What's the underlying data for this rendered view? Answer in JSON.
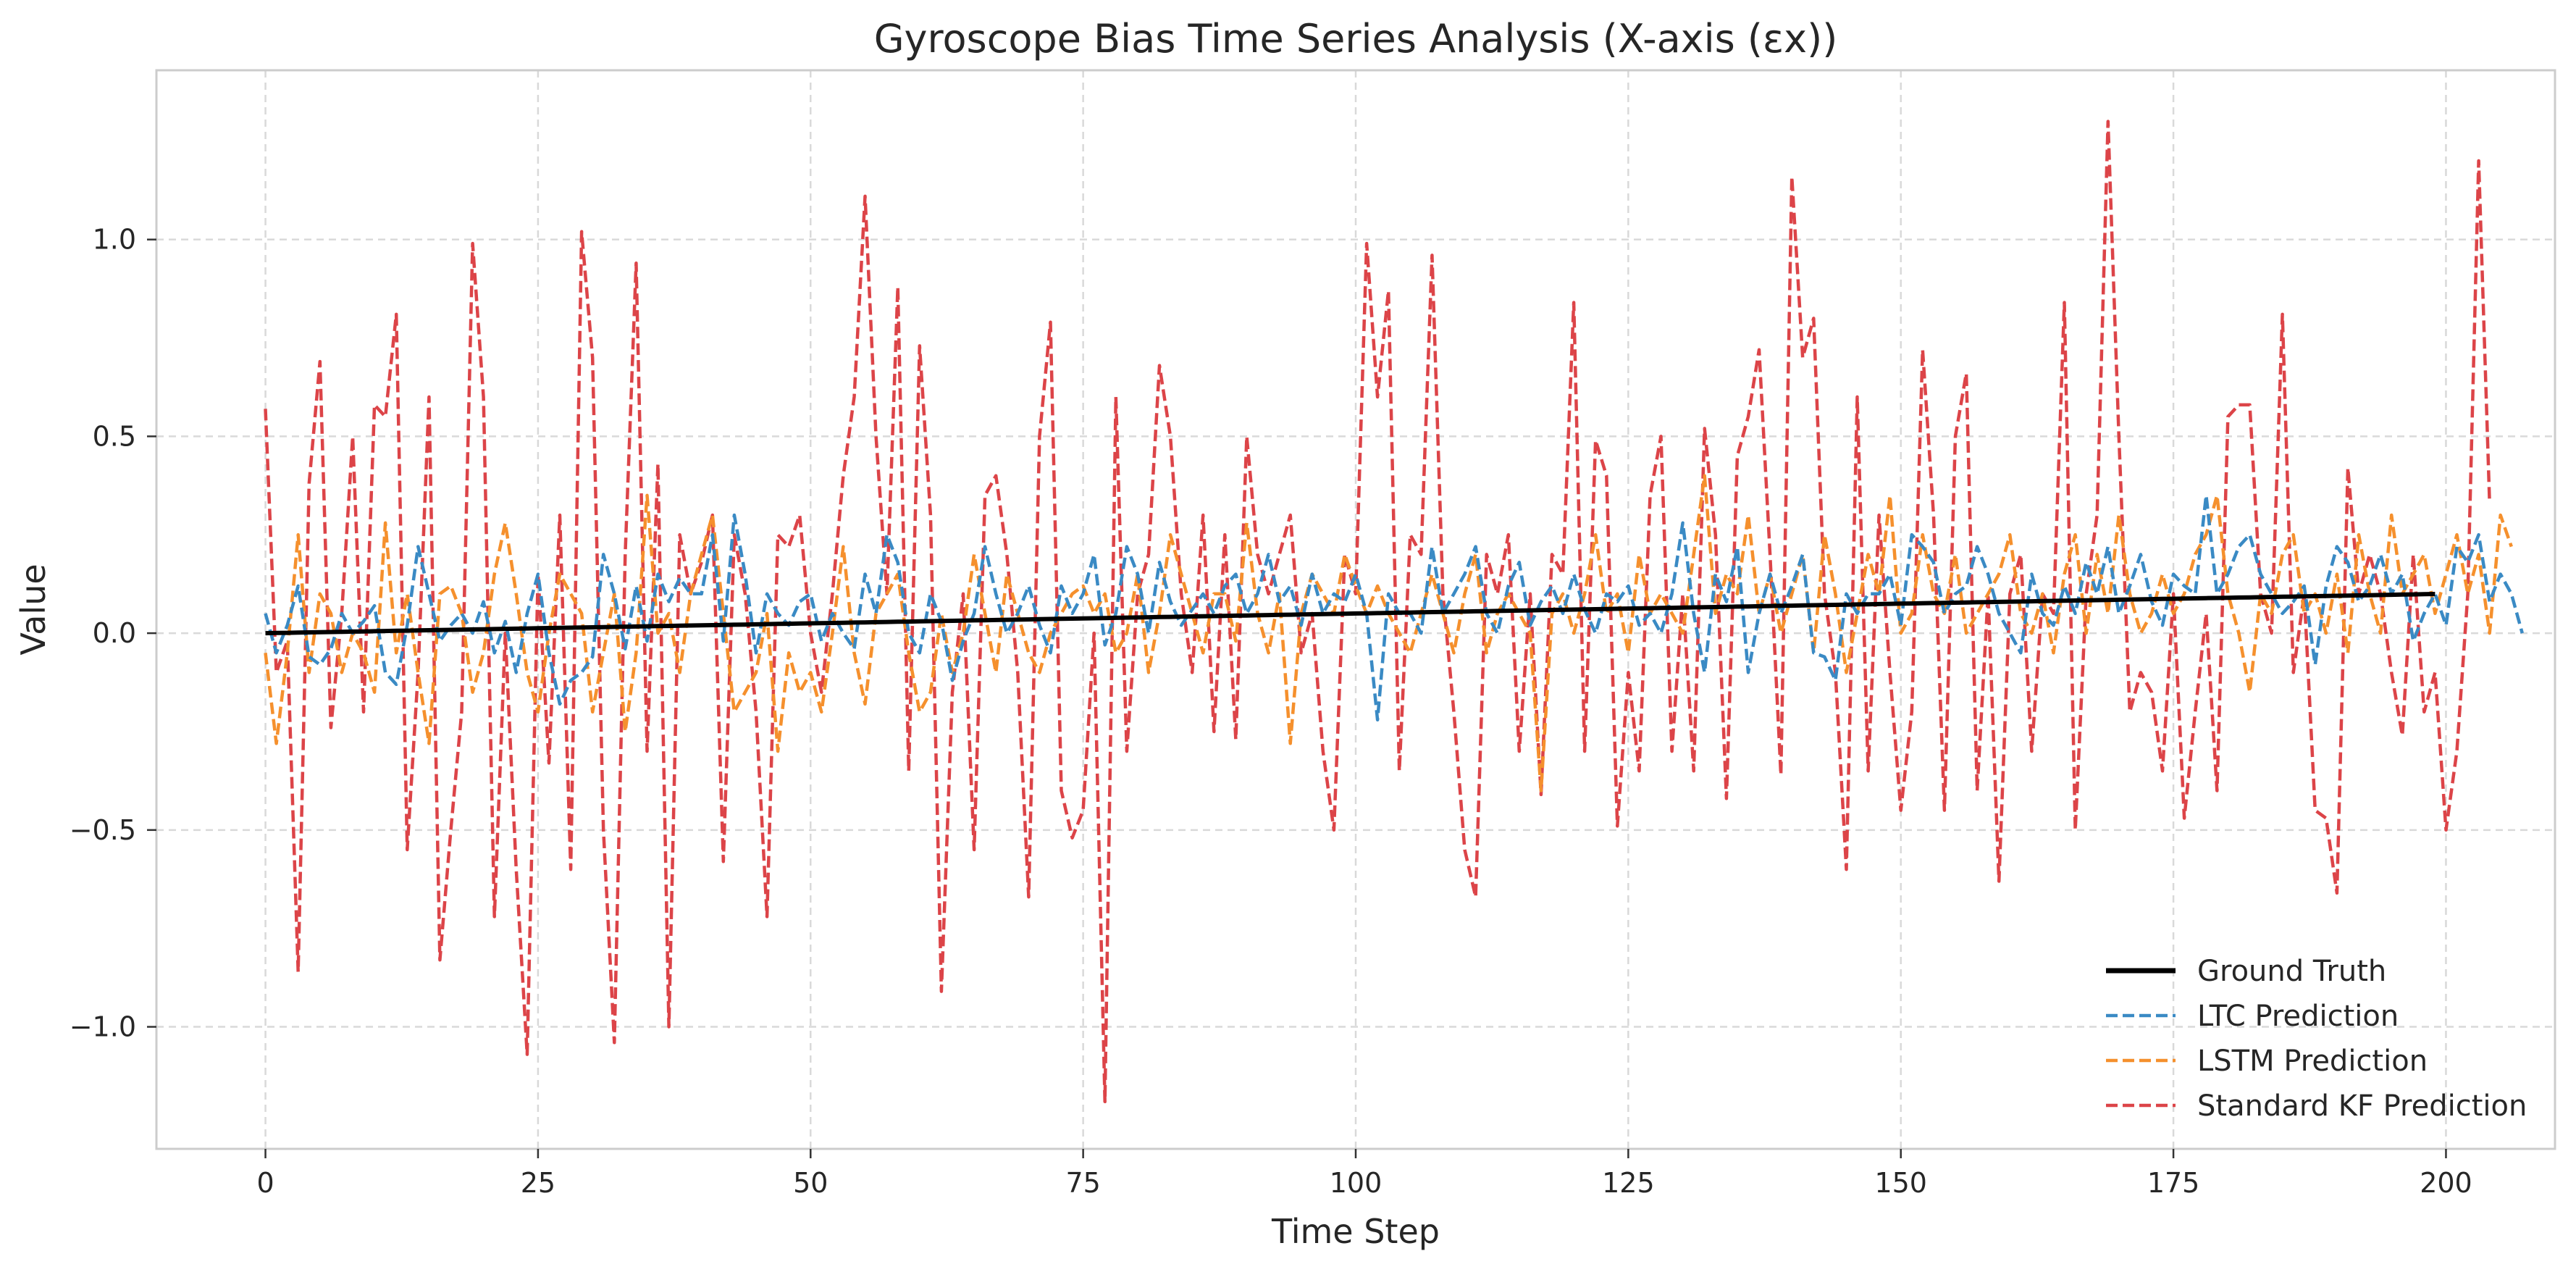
{
  "chart_data": {
    "type": "line",
    "title": "Gyroscope Bias Time Series Analysis (X-axis (εx))",
    "xlabel": "Time Step",
    "ylabel": "Value",
    "xlim": [
      -10,
      210
    ],
    "ylim": [
      -1.31,
      1.43
    ],
    "xticks": [
      0,
      25,
      50,
      75,
      100,
      125,
      150,
      175,
      200
    ],
    "yticks": [
      -1.0,
      -0.5,
      0.0,
      0.5,
      1.0
    ],
    "ytick_labels": [
      "−1.0",
      "−0.5",
      "0.0",
      "0.5",
      "1.0"
    ],
    "grid": true,
    "legend_position": "lower-right",
    "x": {
      "start": 0,
      "end": 199,
      "step": 1
    },
    "series": [
      {
        "name": "Ground Truth",
        "color": "#000000",
        "style": "solid",
        "values": [
          0.0,
          0.0005,
          0.001,
          0.0015,
          0.002,
          0.0025,
          0.003,
          0.0035,
          0.004,
          0.0045,
          0.005,
          0.0055,
          0.006,
          0.0065,
          0.007,
          0.0075,
          0.008,
          0.0085,
          0.009,
          0.0095,
          0.01,
          0.0105,
          0.011,
          0.0115,
          0.012,
          0.0125,
          0.013,
          0.0135,
          0.014,
          0.0145,
          0.015,
          0.0155,
          0.016,
          0.0165,
          0.017,
          0.0175,
          0.018,
          0.0185,
          0.019,
          0.0195,
          0.02,
          0.0205,
          0.021,
          0.0215,
          0.022,
          0.0225,
          0.023,
          0.0235,
          0.024,
          0.0245,
          0.025,
          0.0255,
          0.026,
          0.0265,
          0.027,
          0.0275,
          0.028,
          0.0285,
          0.029,
          0.0295,
          0.03,
          0.0305,
          0.031,
          0.0315,
          0.032,
          0.0325,
          0.033,
          0.0335,
          0.034,
          0.0345,
          0.035,
          0.0355,
          0.036,
          0.0365,
          0.037,
          0.0375,
          0.038,
          0.0385,
          0.039,
          0.0395,
          0.04,
          0.0405,
          0.041,
          0.0415,
          0.042,
          0.0425,
          0.043,
          0.0435,
          0.044,
          0.0445,
          0.045,
          0.0455,
          0.046,
          0.0465,
          0.047,
          0.0475,
          0.048,
          0.0485,
          0.049,
          0.0495,
          0.05,
          0.0505,
          0.051,
          0.0515,
          0.052,
          0.0525,
          0.053,
          0.0535,
          0.054,
          0.0545,
          0.055,
          0.0555,
          0.056,
          0.0565,
          0.057,
          0.0575,
          0.058,
          0.0585,
          0.059,
          0.0595,
          0.06,
          0.0605,
          0.061,
          0.0615,
          0.062,
          0.0625,
          0.063,
          0.0635,
          0.064,
          0.0645,
          0.065,
          0.0655,
          0.066,
          0.0665,
          0.067,
          0.0675,
          0.068,
          0.0685,
          0.069,
          0.0695,
          0.07,
          0.0705,
          0.071,
          0.0715,
          0.072,
          0.0725,
          0.073,
          0.0735,
          0.074,
          0.0745,
          0.075,
          0.0755,
          0.076,
          0.0765,
          0.077,
          0.0775,
          0.078,
          0.0785,
          0.079,
          0.0795,
          0.08,
          0.0805,
          0.081,
          0.0815,
          0.082,
          0.0825,
          0.083,
          0.0835,
          0.084,
          0.0845,
          0.085,
          0.0855,
          0.086,
          0.0865,
          0.087,
          0.0875,
          0.088,
          0.0885,
          0.089,
          0.0895,
          0.09,
          0.0905,
          0.091,
          0.0915,
          0.092,
          0.0925,
          0.093,
          0.0935,
          0.094,
          0.0945,
          0.095,
          0.0955,
          0.096,
          0.0965,
          0.097,
          0.0975,
          0.098,
          0.0985,
          0.099,
          0.0995
        ]
      },
      {
        "name": "LTC Prediction",
        "color": "#3a8ac4",
        "style": "dashed",
        "values": [
          0.05,
          -0.05,
          0.02,
          0.12,
          -0.06,
          -0.08,
          -0.04,
          0.05,
          0.0,
          0.03,
          0.07,
          -0.1,
          -0.13,
          0.02,
          0.22,
          0.1,
          -0.02,
          0.02,
          0.05,
          0.0,
          0.08,
          -0.05,
          0.03,
          -0.1,
          0.05,
          0.15,
          -0.05,
          -0.18,
          -0.12,
          -0.1,
          -0.06,
          0.2,
          0.1,
          -0.04,
          0.12,
          -0.02,
          0.15,
          0.08,
          0.14,
          0.1,
          0.1,
          0.25,
          -0.02,
          0.3,
          0.15,
          -0.05,
          0.1,
          0.05,
          0.02,
          0.08,
          0.1,
          -0.02,
          0.05,
          0.0,
          -0.04,
          0.15,
          0.05,
          0.25,
          0.18,
          0.0,
          -0.05,
          0.1,
          0.03,
          -0.12,
          -0.02,
          0.05,
          0.22,
          0.1,
          0.0,
          0.05,
          0.12,
          0.02,
          -0.05,
          0.12,
          0.05,
          0.1,
          0.2,
          -0.03,
          0.05,
          0.22,
          0.15,
          0.0,
          0.18,
          0.08,
          0.02,
          0.06,
          0.1,
          0.05,
          0.12,
          0.15,
          0.05,
          0.1,
          0.2,
          0.08,
          0.12,
          0.02,
          0.15,
          0.05,
          0.1,
          0.08,
          0.15,
          0.05,
          -0.22,
          0.1,
          0.05,
          0.05,
          0.0,
          0.22,
          0.05,
          0.1,
          0.15,
          0.22,
          0.05,
          0.0,
          0.12,
          0.18,
          0.02,
          0.08,
          0.12,
          0.05,
          0.15,
          0.06,
          0.0,
          0.1,
          0.08,
          0.12,
          0.02,
          0.05,
          0.0,
          0.1,
          0.28,
          0.05,
          -0.1,
          0.15,
          0.08,
          0.22,
          -0.1,
          0.05,
          0.15,
          0.05,
          0.12,
          0.2,
          -0.05,
          -0.06,
          -0.12,
          0.1,
          0.05,
          0.1,
          0.1,
          0.15,
          0.02,
          0.25,
          0.22,
          0.18,
          0.05,
          0.1,
          0.12,
          0.22,
          0.15,
          0.05,
          0.0,
          -0.05,
          0.15,
          0.05,
          0.02,
          0.12,
          0.05,
          0.18,
          0.1,
          0.22,
          0.05,
          0.12,
          0.2,
          0.08,
          0.02,
          0.15,
          0.12,
          0.1,
          0.35,
          0.1,
          0.15,
          0.22,
          0.25,
          0.15,
          0.1,
          0.05,
          0.08,
          0.12,
          -0.08,
          0.12,
          0.22,
          0.18,
          0.08,
          0.12,
          0.2,
          0.1,
          0.15,
          -0.02,
          0.05,
          0.1,
          0.02,
          0.22,
          0.18,
          0.25,
          0.08,
          0.15,
          0.1,
          0.0
        ]
      },
      {
        "name": "LSTM Prediction",
        "color": "#f5902d",
        "style": "dashed",
        "values": [
          -0.05,
          -0.28,
          -0.05,
          0.25,
          -0.1,
          0.1,
          0.05,
          -0.1,
          0.0,
          -0.05,
          -0.15,
          0.28,
          -0.05,
          0.1,
          -0.1,
          -0.28,
          0.1,
          0.12,
          0.05,
          -0.15,
          -0.05,
          0.15,
          0.28,
          0.1,
          -0.1,
          -0.2,
          0.0,
          0.15,
          0.1,
          0.05,
          -0.2,
          -0.05,
          0.1,
          -0.25,
          -0.05,
          0.35,
          0.0,
          0.05,
          -0.1,
          0.1,
          0.2,
          0.3,
          0.05,
          -0.2,
          -0.15,
          -0.1,
          0.05,
          -0.3,
          -0.05,
          -0.15,
          -0.1,
          -0.2,
          0.0,
          0.22,
          -0.05,
          -0.18,
          0.05,
          0.1,
          0.15,
          -0.05,
          -0.2,
          -0.15,
          0.05,
          -0.1,
          0.0,
          0.2,
          0.05,
          -0.1,
          0.15,
          0.05,
          -0.05,
          -0.1,
          0.0,
          0.05,
          0.1,
          0.12,
          0.05,
          0.1,
          -0.05,
          0.0,
          0.15,
          -0.1,
          0.05,
          0.25,
          0.15,
          0.05,
          -0.05,
          0.1,
          0.1,
          -0.02,
          0.28,
          0.05,
          -0.05,
          0.1,
          -0.28,
          0.05,
          0.15,
          0.1,
          0.05,
          0.2,
          0.12,
          0.05,
          0.12,
          0.05,
          0.0,
          -0.05,
          0.05,
          0.15,
          0.05,
          -0.05,
          0.1,
          0.2,
          -0.05,
          0.05,
          0.1,
          0.05,
          0.0,
          -0.4,
          0.05,
          0.1,
          0.0,
          0.1,
          0.25,
          0.05,
          0.1,
          -0.05,
          0.2,
          0.05,
          0.1,
          0.05,
          0.0,
          0.2,
          0.4,
          0.05,
          0.15,
          0.1,
          0.3,
          0.05,
          0.15,
          0.0,
          0.1,
          0.2,
          -0.05,
          0.25,
          0.1,
          -0.1,
          0.05,
          0.2,
          0.1,
          0.35,
          0.0,
          0.05,
          0.25,
          0.1,
          0.05,
          0.2,
          0.0,
          0.05,
          0.1,
          0.15,
          0.25,
          0.05,
          0.0,
          0.1,
          -0.05,
          0.15,
          0.25,
          0.0,
          0.2,
          0.05,
          0.3,
          0.1,
          0.0,
          0.05,
          0.15,
          0.05,
          0.1,
          0.2,
          0.25,
          0.35,
          0.1,
          0.0,
          -0.15,
          0.1,
          0.05,
          0.2,
          0.25,
          0.05,
          0.1,
          0.0,
          0.15,
          -0.05,
          0.25,
          0.1,
          0.0,
          0.3,
          0.1,
          0.15,
          0.2,
          0.05,
          0.15,
          0.25,
          0.1,
          0.2,
          0.0,
          0.3,
          0.22
        ]
      },
      {
        "name": "Standard KF Prediction",
        "color": "#dc4448",
        "style": "dashed",
        "values": [
          0.57,
          -0.1,
          -0.02,
          -0.86,
          0.38,
          0.69,
          -0.24,
          0.05,
          0.5,
          -0.2,
          0.58,
          0.55,
          0.81,
          -0.55,
          -0.1,
          0.6,
          -0.83,
          -0.5,
          -0.2,
          0.99,
          0.6,
          -0.72,
          0.0,
          -0.6,
          -1.07,
          0.15,
          -0.33,
          0.3,
          -0.6,
          1.02,
          0.7,
          -0.5,
          -1.04,
          0.2,
          0.94,
          -0.3,
          0.43,
          -1.0,
          0.25,
          0.1,
          0.18,
          0.3,
          -0.58,
          0.25,
          0.1,
          -0.2,
          -0.72,
          0.25,
          0.22,
          0.3,
          0.0,
          -0.15,
          0.1,
          0.4,
          0.6,
          1.11,
          0.5,
          0.1,
          0.88,
          -0.35,
          0.73,
          0.3,
          -0.91,
          -0.15,
          0.1,
          -0.55,
          0.35,
          0.4,
          0.2,
          -0.1,
          -0.67,
          0.5,
          0.79,
          -0.4,
          -0.52,
          -0.45,
          0.0,
          -1.19,
          0.6,
          -0.3,
          0.1,
          0.2,
          0.68,
          0.5,
          0.1,
          -0.1,
          0.3,
          -0.25,
          0.25,
          -0.27,
          0.5,
          0.2,
          0.1,
          0.2,
          0.3,
          -0.05,
          0.05,
          -0.3,
          -0.5,
          0.2,
          0.1,
          0.99,
          0.6,
          0.87,
          -0.35,
          0.25,
          0.2,
          0.96,
          0.1,
          -0.2,
          -0.55,
          -0.67,
          0.2,
          0.1,
          0.25,
          -0.3,
          0.1,
          -0.41,
          0.2,
          0.15,
          0.84,
          -0.3,
          0.49,
          0.4,
          -0.49,
          -0.1,
          -0.35,
          0.35,
          0.5,
          -0.3,
          0.1,
          -0.35,
          0.52,
          0.25,
          -0.42,
          0.45,
          0.55,
          0.72,
          0.2,
          -0.36,
          1.16,
          0.7,
          0.8,
          0.1,
          -0.1,
          -0.6,
          0.6,
          -0.35,
          0.3,
          -0.1,
          -0.45,
          -0.2,
          0.72,
          0.3,
          -0.45,
          0.5,
          0.66,
          -0.4,
          0.1,
          -0.63,
          0.1,
          0.2,
          -0.3,
          0.1,
          0.05,
          0.84,
          -0.5,
          0.1,
          0.3,
          1.3,
          0.5,
          -0.2,
          -0.1,
          -0.15,
          -0.35,
          0.1,
          -0.47,
          -0.2,
          0.05,
          -0.4,
          0.55,
          0.58,
          0.58,
          0.1,
          0.0,
          0.81,
          -0.1,
          0.1,
          -0.45,
          -0.47,
          -0.66,
          0.42,
          0.1,
          0.2,
          0.1,
          -0.1,
          -0.26,
          0.2,
          -0.2,
          -0.1,
          -0.5,
          -0.3,
          0.1,
          1.2,
          0.33
        ]
      }
    ]
  }
}
